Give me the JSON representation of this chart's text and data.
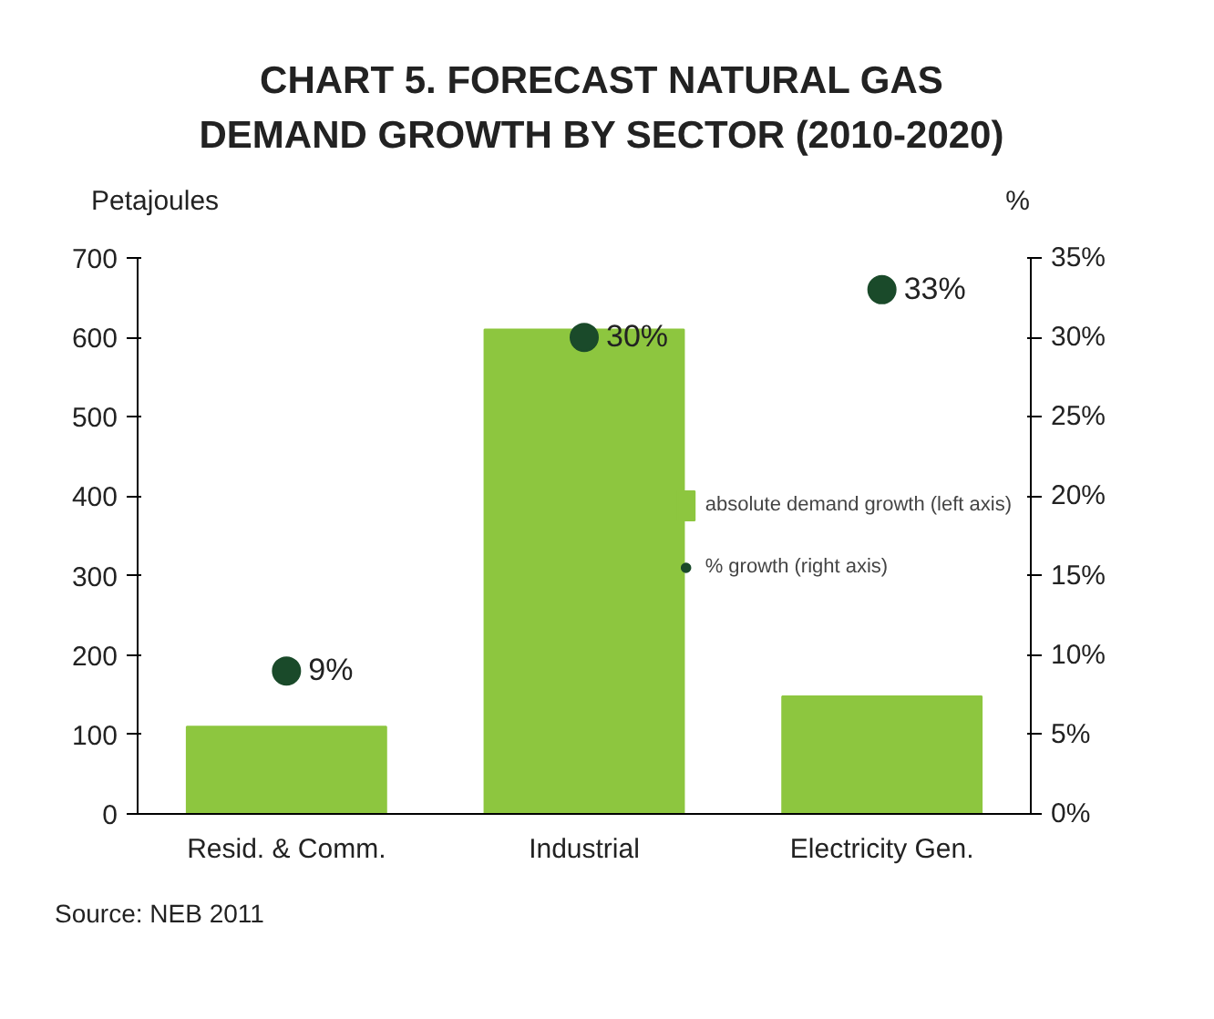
{
  "chart_data": {
    "type": "bar",
    "title": "CHART 5. FORECAST NATURAL GAS\nDEMAND GROWTH BY SECTOR (2010-2020)",
    "ylabel": "Petajoules",
    "y2label": "%",
    "categories": [
      "Resid. & Comm.",
      "Industrial",
      "Electricity Gen."
    ],
    "series": [
      {
        "name": "absolute demand growth (left axis)",
        "color": "#8dc63f",
        "values": [
          110,
          610,
          148
        ]
      },
      {
        "name": "% growth (right axis)",
        "type": "scatter",
        "axis": "y2",
        "color": "#1a4a2a",
        "marker": "circle",
        "values": [
          9,
          30,
          33
        ],
        "value_labels": [
          "9%",
          "30%",
          "33%"
        ]
      }
    ],
    "ylim": [
      0,
      700
    ],
    "yticks": [
      0,
      100,
      200,
      300,
      400,
      500,
      600,
      700
    ],
    "y2lim": [
      0,
      35
    ],
    "y2ticks": [
      {
        "value": 0,
        "label": "0%"
      },
      {
        "value": 5,
        "label": "5%"
      },
      {
        "value": 10,
        "label": "10%"
      },
      {
        "value": 15,
        "label": "15%"
      },
      {
        "value": 20,
        "label": "20%"
      },
      {
        "value": 25,
        "label": "25%"
      },
      {
        "value": 30,
        "label": "30%"
      },
      {
        "value": 35,
        "label": "35%"
      }
    ],
    "grid": false,
    "legend": "right",
    "annotations": [
      "Source: NEB 2011"
    ]
  }
}
